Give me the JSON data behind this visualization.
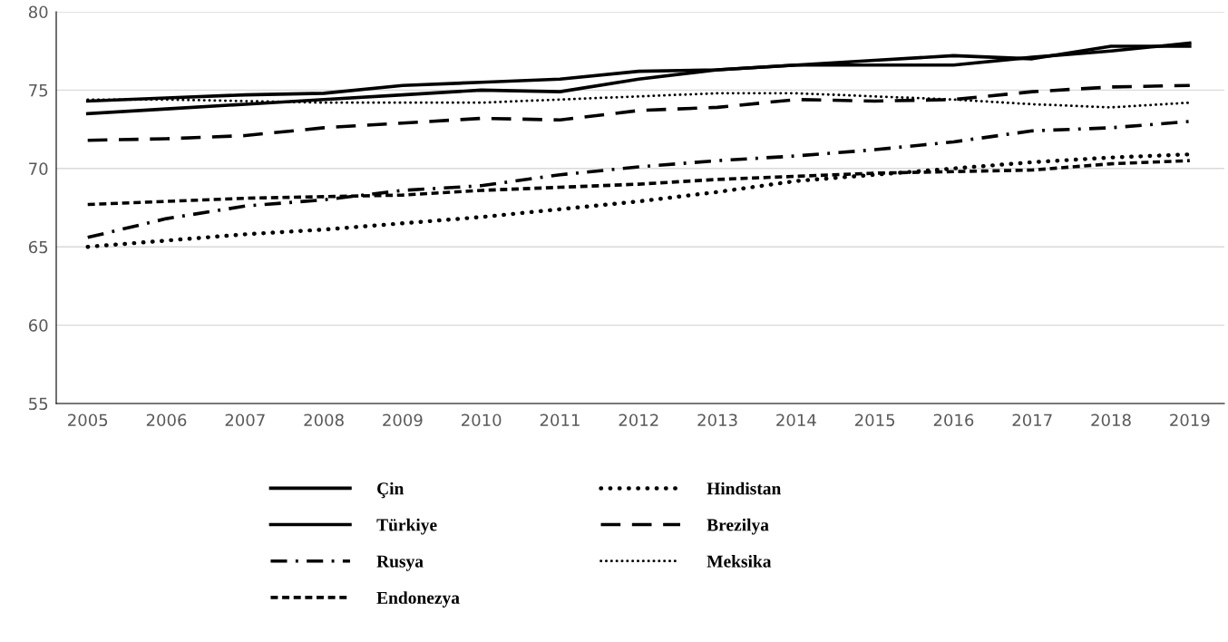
{
  "chart_data": {
    "type": "line",
    "categories": [
      "2005",
      "2006",
      "2007",
      "2008",
      "2009",
      "2010",
      "2011",
      "2012",
      "2013",
      "2014",
      "2015",
      "2016",
      "2017",
      "2018",
      "2019"
    ],
    "ylim": [
      55,
      80
    ],
    "yticks": [
      55,
      60,
      65,
      70,
      75,
      80
    ],
    "grid": "y",
    "legend": "bottom",
    "series": [
      {
        "name": "Çin",
        "color": "#000000",
        "line_style": "solid",
        "values": [
          74.3,
          74.5,
          74.7,
          74.8,
          75.3,
          75.5,
          75.7,
          76.2,
          76.3,
          76.6,
          76.9,
          77.2,
          77.0,
          77.8,
          77.8
        ]
      },
      {
        "name": "Türkiye",
        "color": "#000000",
        "line_style": "solid",
        "values": [
          73.5,
          73.8,
          74.1,
          74.4,
          74.7,
          75.0,
          74.9,
          75.7,
          76.3,
          76.6,
          76.6,
          76.6,
          77.1,
          77.5,
          78.0
        ]
      },
      {
        "name": "Rusya",
        "color": "#000000",
        "line_style": "dashdot",
        "values": [
          65.6,
          66.8,
          67.6,
          68.0,
          68.6,
          68.9,
          69.6,
          70.1,
          70.5,
          70.8,
          71.2,
          71.7,
          72.4,
          72.6,
          73.0
        ]
      },
      {
        "name": "Endonezya",
        "color": "#000000",
        "line_style": "dashed",
        "values": [
          67.7,
          67.9,
          68.1,
          68.2,
          68.3,
          68.6,
          68.8,
          69.0,
          69.3,
          69.5,
          69.7,
          69.8,
          69.9,
          70.3,
          70.5
        ]
      },
      {
        "name": "Hindistan",
        "color": "#000000",
        "line_style": "dotted",
        "values": [
          65.0,
          65.4,
          65.8,
          66.1,
          66.5,
          66.9,
          67.4,
          67.9,
          68.5,
          69.2,
          69.6,
          70.0,
          70.4,
          70.7,
          70.9
        ]
      },
      {
        "name": "Brezilya",
        "color": "#000000",
        "line_style": "longdash",
        "values": [
          71.8,
          71.9,
          72.1,
          72.6,
          72.9,
          73.2,
          73.1,
          73.7,
          73.9,
          74.4,
          74.3,
          74.4,
          74.9,
          75.2,
          75.3
        ]
      },
      {
        "name": "Meksika",
        "color": "#000000",
        "line_style": "finedot",
        "values": [
          74.4,
          74.4,
          74.3,
          74.2,
          74.2,
          74.2,
          74.4,
          74.6,
          74.8,
          74.8,
          74.6,
          74.4,
          74.1,
          73.9,
          74.2
        ]
      }
    ]
  }
}
